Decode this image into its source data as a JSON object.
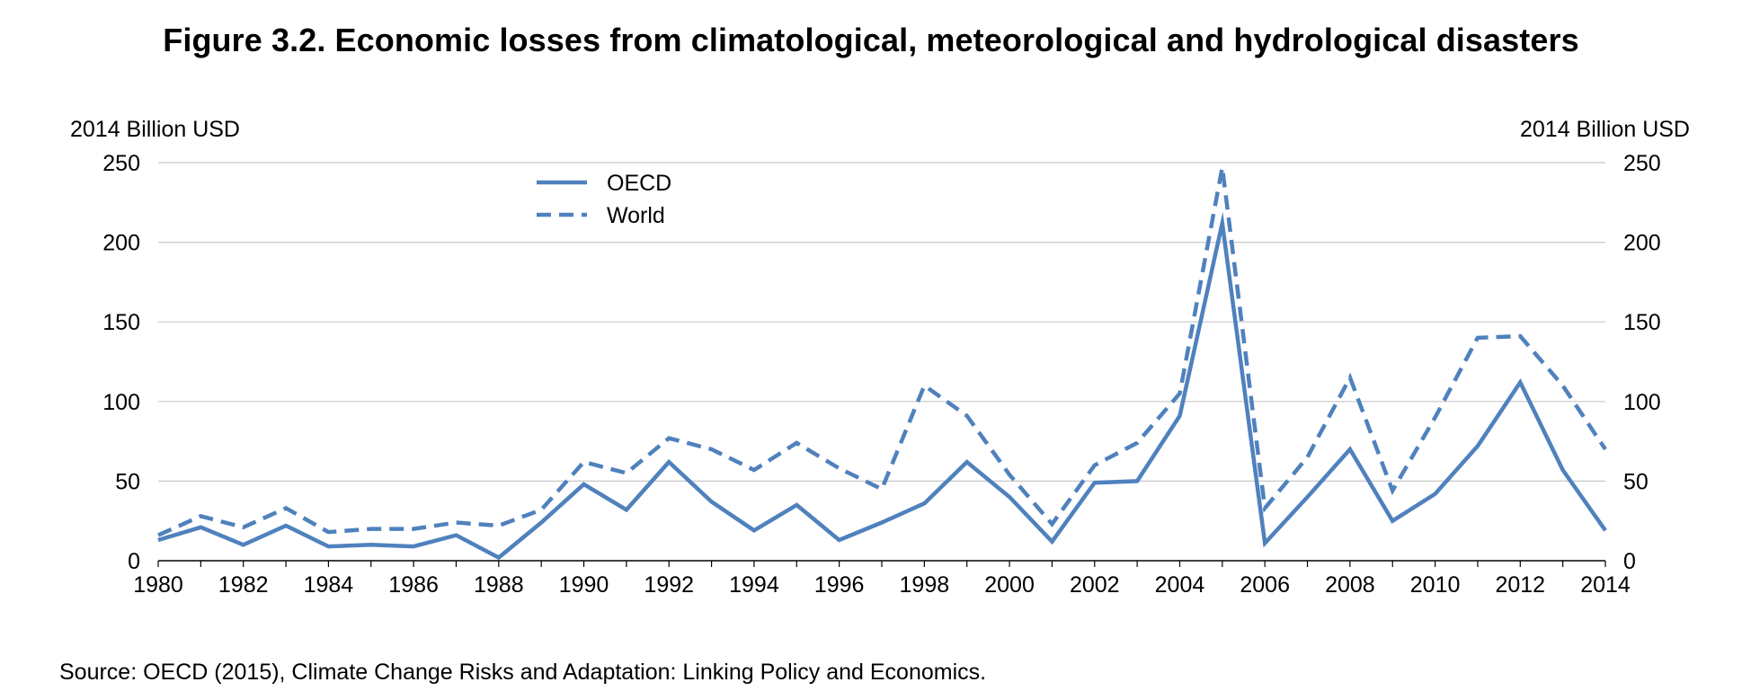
{
  "chart_data": {
    "type": "line",
    "title": "Figure 3.2. Economic losses from climatological, meteorological and hydrological disasters",
    "ylabel_left": "2014 Billion USD",
    "ylabel_right": "2014 Billion USD",
    "ylim": [
      0,
      250
    ],
    "yticks": [
      0,
      50,
      100,
      150,
      200,
      250
    ],
    "xticks": [
      1980,
      1982,
      1984,
      1986,
      1988,
      1990,
      1992,
      1994,
      1996,
      1998,
      2000,
      2002,
      2004,
      2006,
      2008,
      2010,
      2012,
      2014
    ],
    "x": [
      1980,
      1981,
      1982,
      1983,
      1984,
      1985,
      1986,
      1987,
      1988,
      1989,
      1990,
      1991,
      1992,
      1993,
      1994,
      1995,
      1996,
      1997,
      1998,
      1999,
      2000,
      2001,
      2002,
      2003,
      2004,
      2005,
      2006,
      2007,
      2008,
      2009,
      2010,
      2011,
      2012,
      2013,
      2014
    ],
    "grid": "horizontal",
    "legend_position": "top-left",
    "series": [
      {
        "name": "OECD",
        "style": "solid",
        "values": [
          13,
          21,
          10,
          22,
          9,
          10,
          9,
          16,
          2,
          24,
          48,
          32,
          62,
          37,
          19,
          35,
          13,
          24,
          36,
          62,
          40,
          12,
          49,
          50,
          91,
          212,
          11,
          40,
          70,
          25,
          42,
          72,
          112,
          57,
          19
        ]
      },
      {
        "name": "World",
        "style": "dashed",
        "values": [
          16,
          28,
          21,
          33,
          18,
          20,
          20,
          24,
          22,
          32,
          62,
          55,
          77,
          70,
          57,
          74,
          58,
          45,
          110,
          91,
          54,
          23,
          60,
          74,
          105,
          247,
          33,
          65,
          115,
          44,
          90,
          140,
          141,
          110,
          70
        ]
      }
    ],
    "color": "#4f81bd",
    "source": "Source: OECD (2015), Climate Change Risks and Adaptation: Linking Policy and Economics."
  }
}
